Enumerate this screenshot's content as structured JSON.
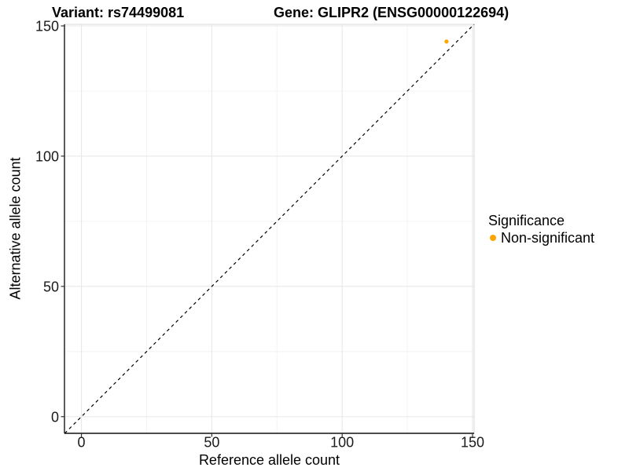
{
  "chart_data": {
    "type": "scatter",
    "title_left": "Variant: rs74499081",
    "title_right": "Gene: GLIPR2 (ENSG00000122694)",
    "xlabel": "Reference allele count",
    "ylabel": "Alternative allele count",
    "x_ticks": [
      0,
      50,
      100,
      150
    ],
    "y_ticks": [
      0,
      50,
      100,
      150
    ],
    "x_minor_ticks": [
      25,
      75,
      125
    ],
    "y_minor_ticks": [
      25,
      75,
      125
    ],
    "xlim": [
      -6.5,
      150.6
    ],
    "ylim": [
      -6.4,
      150.6
    ],
    "grid": "major+minor",
    "abline": {
      "intercept": 0,
      "slope": 1,
      "style": "dashed",
      "color": "#000000"
    },
    "points": [
      {
        "x": 140,
        "y": 144,
        "significance": "Non-significant",
        "color": "#FFA500"
      }
    ],
    "legend": {
      "title": "Significance",
      "position": "right",
      "items": [
        {
          "label": "Non-significant",
          "color": "#FFA500"
        }
      ]
    },
    "colors": {
      "point": "#FFA500",
      "grid_major": "#e8e8e8",
      "grid_minor": "#f4f4f4",
      "panel_border": "#d8d8d8",
      "axis_line": "#333333",
      "tick_mark": "#333333"
    }
  }
}
